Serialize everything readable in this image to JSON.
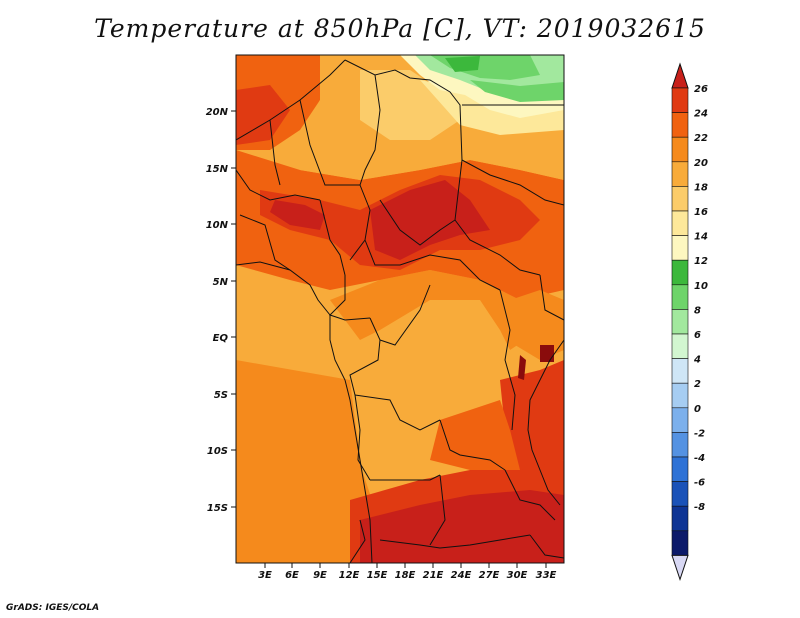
{
  "title": "Temperature at 850hPa [C], VT: 2019032615",
  "credit": "GrADS: IGES/COLA",
  "map": {
    "lon_labels": [
      "3E",
      "6E",
      "9E",
      "12E",
      "15E",
      "18E",
      "21E",
      "24E",
      "27E",
      "30E",
      "33E"
    ],
    "lat_labels": [
      "20N",
      "15N",
      "10N",
      "5N",
      "EQ",
      "5S",
      "10S",
      "15S"
    ]
  },
  "colorbar": {
    "labels": [
      "26",
      "24",
      "22",
      "20",
      "18",
      "16",
      "14",
      "12",
      "10",
      "8",
      "6",
      "4",
      "2",
      "0",
      "-2",
      "-4",
      "-6",
      "-8"
    ],
    "colors_top_to_bottom": [
      "#c8201a",
      "#e03a12",
      "#f06210",
      "#f58a1c",
      "#f8ab3a",
      "#fbcc6a",
      "#fde89a",
      "#fdf7c0",
      "#3cb83c",
      "#6ed46a",
      "#a2e89e",
      "#d2f6d0",
      "#cfe6f6",
      "#a6cdf2",
      "#7cb0ec",
      "#5492e2",
      "#2e72d6",
      "#1a52b8",
      "#0e3494",
      "#0c1a6a"
    ],
    "min_triangle_color": "#d8d8f4"
  }
}
